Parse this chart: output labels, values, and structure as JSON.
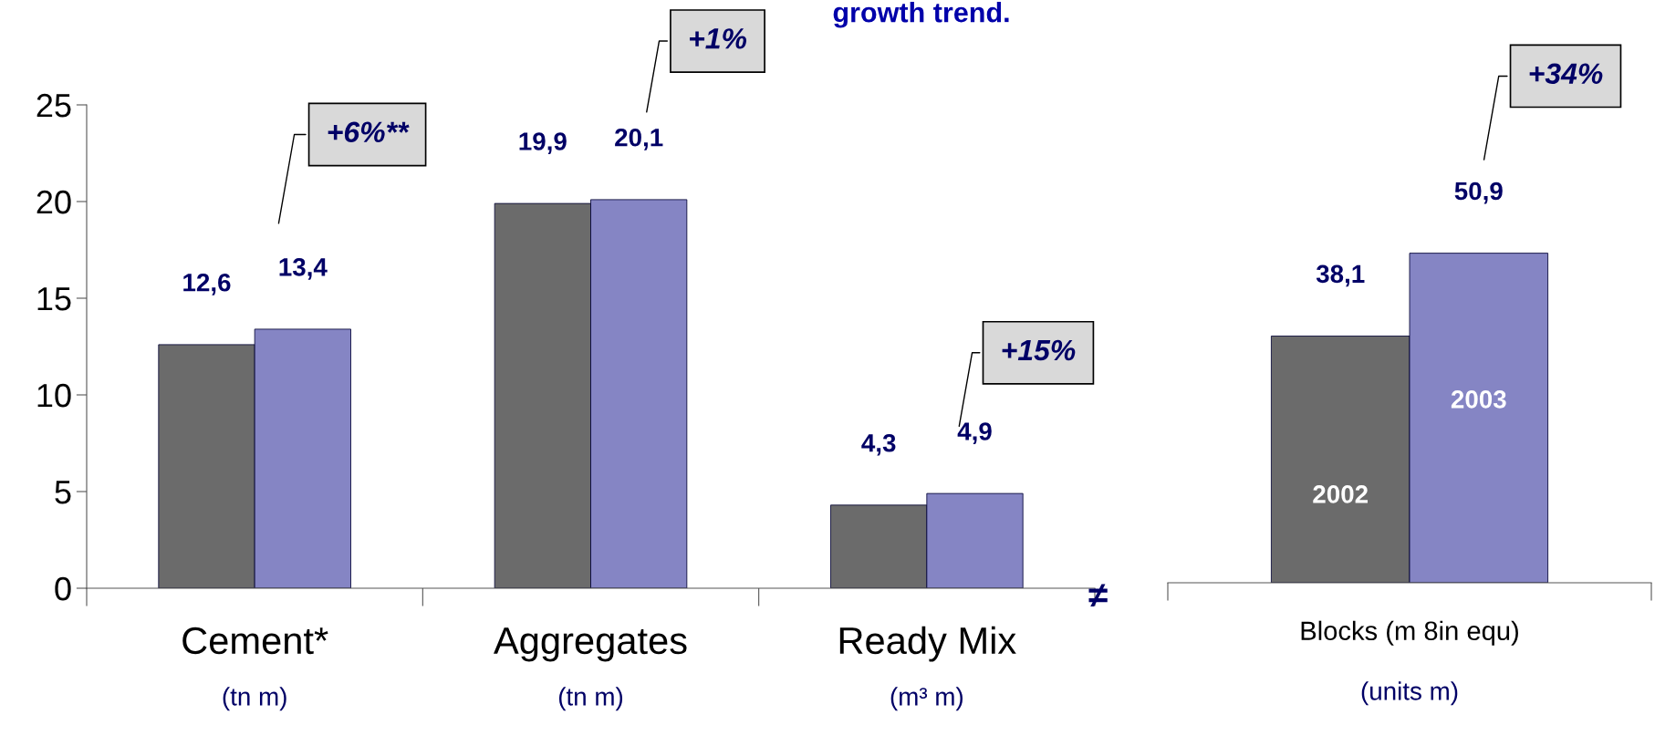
{
  "chart_data": [
    {
      "type": "bar",
      "categories": [
        "Cement*\n(tn m)",
        "Aggregates\n(tn m)",
        "Ready Mix\n(m³ m)"
      ],
      "series": [
        {
          "color": "#6b6b6b",
          "values": [
            12.6,
            19.9,
            4.3
          ],
          "value_labels": [
            "12,6",
            "19,9",
            "4,3"
          ]
        },
        {
          "color": "#8585c4",
          "values": [
            13.4,
            20.1,
            4.9
          ],
          "value_labels": [
            "13,4",
            "20,1",
            "4,9"
          ]
        }
      ],
      "ylim": [
        0,
        25
      ],
      "yticks": [
        0,
        5,
        10,
        15,
        20,
        25
      ],
      "grid": false,
      "annotations": [
        "growth trend.",
        "+6%**",
        "+1%",
        "+15%"
      ]
    },
    {
      "type": "bar",
      "categories": [
        "Blocks (m 8in equ)\n(units m)"
      ],
      "tick_labels": "x",
      "series": [
        {
          "name": "2002",
          "color": "#6b6b6b",
          "values": [
            38.1
          ],
          "value_labels": [
            "38,1"
          ]
        },
        {
          "name": "2003",
          "color": "#8585c4",
          "values": [
            50.9
          ],
          "value_labels": [
            "50,9"
          ]
        }
      ],
      "grid": false,
      "annotations": [
        "≠",
        "+34%"
      ]
    }
  ]
}
